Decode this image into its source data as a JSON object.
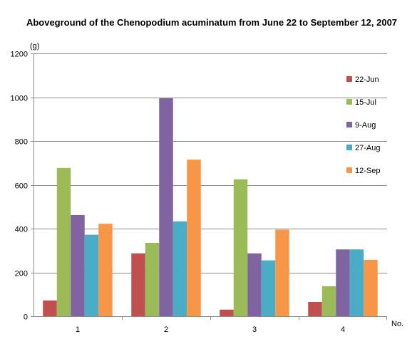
{
  "chart_data": {
    "type": "bar",
    "title": "Aboveground of the  Chenopodium acuminatum from June 22 to September 12, 2007",
    "ylabel": "(g)",
    "xlabel": "No.",
    "ylim": [
      0,
      1200
    ],
    "yticks": [
      0,
      200,
      400,
      600,
      800,
      1000,
      1200
    ],
    "categories": [
      "1",
      "2",
      "3",
      "4"
    ],
    "grid": true,
    "legend_position": "right",
    "series": [
      {
        "name": "22-Jun",
        "color": "#c0504d",
        "values": [
          72,
          287,
          30,
          65
        ]
      },
      {
        "name": "15-Jul",
        "color": "#9bbb59",
        "values": [
          677,
          335,
          625,
          137
        ]
      },
      {
        "name": "9-Aug",
        "color": "#8064a2",
        "values": [
          462,
          995,
          287,
          305
        ]
      },
      {
        "name": "27-Aug",
        "color": "#4bacc6",
        "values": [
          372,
          433,
          255,
          305
        ]
      },
      {
        "name": "12-Sep",
        "color": "#f79646",
        "values": [
          422,
          715,
          395,
          257
        ]
      }
    ]
  }
}
